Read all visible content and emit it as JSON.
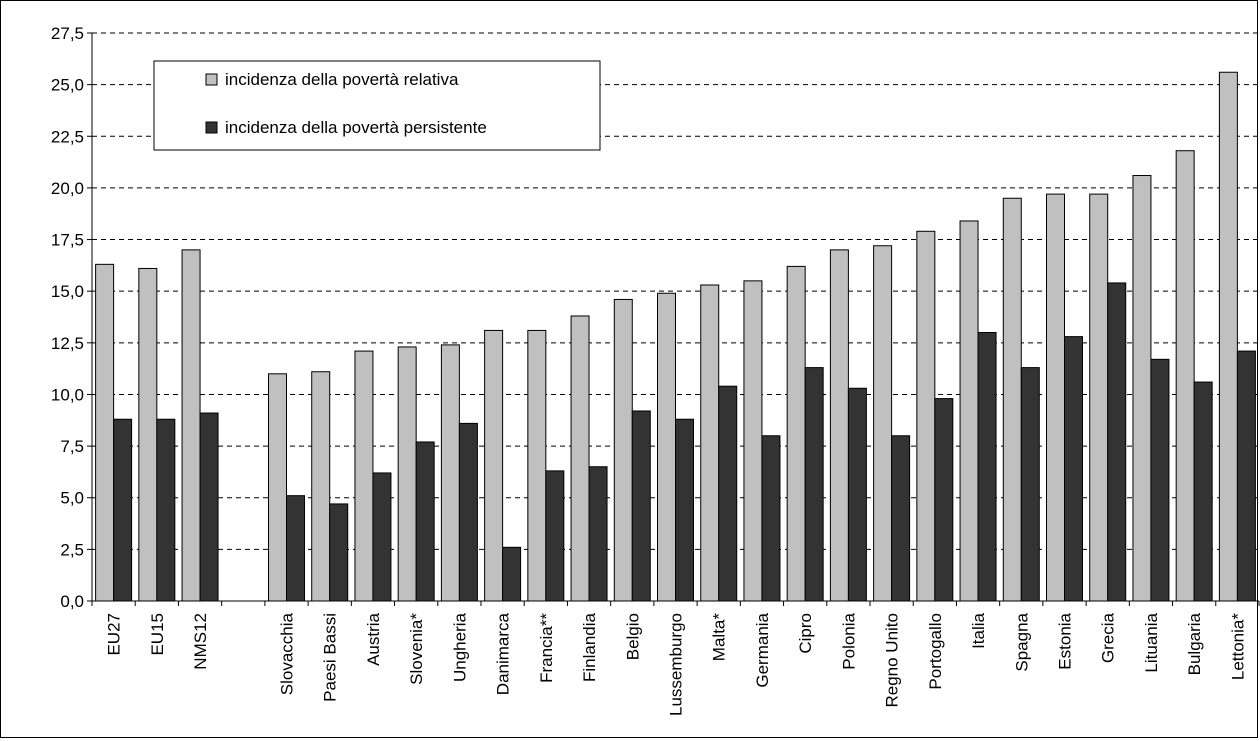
{
  "chart_data": {
    "type": "bar",
    "title": "",
    "xlabel": "",
    "ylabel": "",
    "ylim": [
      0,
      27.5
    ],
    "yticks": [
      "0,0",
      "2,5",
      "5,0",
      "7,5",
      "10,0",
      "12,5",
      "15,0",
      "17,5",
      "20,0",
      "22,5",
      "25,0",
      "27,5"
    ],
    "grid": "horizontal dashed",
    "legend_position": "top-left",
    "categories": [
      "EU27",
      "EU15",
      "NMS12",
      "",
      "Slovacchia",
      "Paesi Bassi",
      "Austria",
      "Slovenia*",
      "Ungheria",
      "Danimarca",
      "Francia**",
      "Finlandia",
      "Belgio",
      "Lussemburgo",
      "Malta*",
      "Germania",
      "Cipro",
      "Polonia",
      "Regno Unito",
      "Portogallo",
      "Italia",
      "Spagna",
      "Estonia",
      "Grecia",
      "Lituania",
      "Bulgaria",
      "Lettonia*"
    ],
    "series": [
      {
        "name": "incidenza della povertà relativa",
        "color": "#c0c0c0",
        "values": [
          16.3,
          16.1,
          17.0,
          null,
          11.0,
          11.1,
          12.1,
          12.3,
          12.4,
          13.1,
          13.1,
          13.8,
          14.6,
          14.9,
          15.3,
          15.5,
          16.2,
          17.0,
          17.2,
          17.9,
          18.4,
          19.5,
          19.7,
          19.7,
          20.6,
          21.8,
          25.6
        ]
      },
      {
        "name": "incidenza della povertà persistente",
        "color": "#333333",
        "values": [
          8.8,
          8.8,
          9.1,
          null,
          5.1,
          4.7,
          6.2,
          7.7,
          8.6,
          2.6,
          6.3,
          6.5,
          9.2,
          8.8,
          10.4,
          8.0,
          11.3,
          10.3,
          8.0,
          9.8,
          13.0,
          11.3,
          12.8,
          15.4,
          11.7,
          10.6,
          12.1
        ]
      }
    ]
  }
}
